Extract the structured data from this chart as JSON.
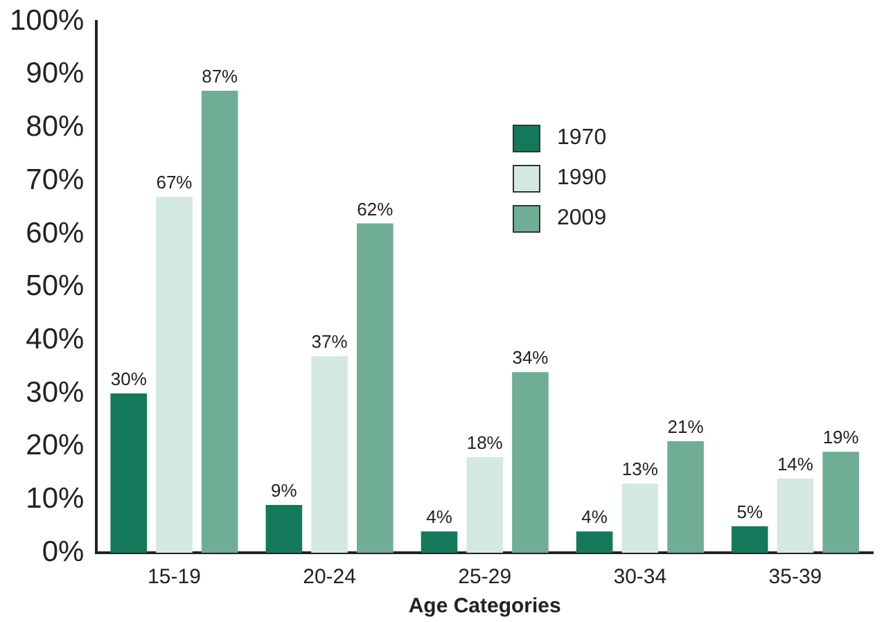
{
  "chart_data": {
    "type": "bar",
    "xlabel": "Age Categories",
    "categories": [
      "15-19",
      "20-24",
      "25-29",
      "30-34",
      "35-39"
    ],
    "series": [
      {
        "name": "1970",
        "color": "#14795a",
        "values": [
          30,
          9,
          4,
          4,
          5
        ],
        "value_labels": [
          "30%",
          "9%",
          "4%",
          "4%",
          "5%"
        ]
      },
      {
        "name": "1990",
        "color": "#d3e9df",
        "values": [
          67,
          37,
          18,
          13,
          14
        ],
        "value_labels": [
          "67%",
          "37%",
          "18%",
          "13%",
          "14%"
        ]
      },
      {
        "name": "2009",
        "color": "#6fae94",
        "values": [
          87,
          62,
          34,
          21,
          19
        ],
        "value_labels": [
          "87%",
          "62%",
          "34%",
          "21%",
          "19%"
        ]
      }
    ],
    "ylim": [
      0,
      100
    ],
    "yticks": [
      {
        "value": 0,
        "label": "0%"
      },
      {
        "value": 10,
        "label": "10%"
      },
      {
        "value": 20,
        "label": "20%"
      },
      {
        "value": 30,
        "label": "30%"
      },
      {
        "value": 40,
        "label": "40%"
      },
      {
        "value": 50,
        "label": "50%"
      },
      {
        "value": 60,
        "label": "60%"
      },
      {
        "value": 70,
        "label": "70%"
      },
      {
        "value": 80,
        "label": "80%"
      },
      {
        "value": 90,
        "label": "90%"
      },
      {
        "value": 100,
        "label": "100%"
      }
    ],
    "grid": false,
    "legend": "top right"
  }
}
